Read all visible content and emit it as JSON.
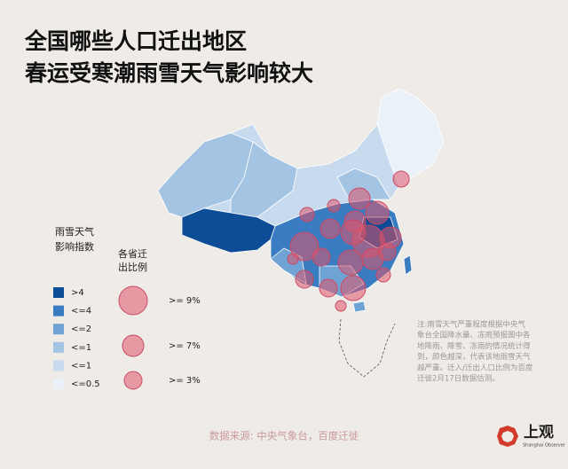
{
  "title": [
    "全国哪些人口迁出地区",
    "春运受寒潮雨雪天气影响较大"
  ],
  "index_legend": {
    "title": [
      "雨雪天气",
      "影响指数"
    ],
    "items": [
      {
        "label": ">4",
        "color": "#0d4c97"
      },
      {
        "label": "<=4",
        "color": "#3a7cc1"
      },
      {
        "label": "<=2",
        "color": "#6fa3d3"
      },
      {
        "label": "<=1",
        "color": "#a3c4e2"
      },
      {
        "label": "<=1",
        "color": "#c8dbee"
      },
      {
        "label": "<=0.5",
        "color": "#eaf1f9"
      }
    ]
  },
  "bubble_legend": {
    "title": [
      "各省迁",
      "出比例"
    ],
    "items": [
      ">= 9%",
      ">= 7%",
      ">= 3%"
    ]
  },
  "note": [
    "注:雨雪天气严重程度根据中央气",
    "象台全国降水量、冻雨预报图中各",
    "地降雨、降雪、冻雨的情况统计得",
    "到，颜色越深，代表该地雨雪天气",
    "越严重。迁入/迁出人口比例为百度",
    "迁徙2月17日数据估测。"
  ],
  "source": "数据来源: 中央气象台，百度迁徙",
  "logo": {
    "name": "上观",
    "sub": "Shanghai Observer"
  }
}
